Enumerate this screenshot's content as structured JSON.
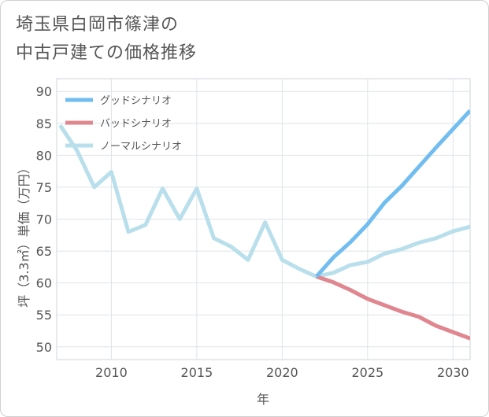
{
  "title": {
    "line1": "埼玉県白岡市篠津の",
    "line2": "中古戸建ての価格推移"
  },
  "chart_data": {
    "type": "line",
    "xlabel": "年",
    "ylabel": "坪（3.3㎡）単価（万円）",
    "xlim": [
      2006.8,
      2031
    ],
    "ylim": [
      48,
      92
    ],
    "xticks": [
      2010,
      2015,
      2020,
      2025,
      2030
    ],
    "yticks": [
      50,
      55,
      60,
      65,
      70,
      75,
      80,
      85,
      90
    ],
    "grid": true,
    "legend_position": "top-left",
    "series": [
      {
        "name": "グッドシナリオ",
        "color": "#72bdf0",
        "points": [
          [
            2022,
            61
          ],
          [
            2023,
            64
          ],
          [
            2024,
            66.4
          ],
          [
            2025,
            69.2
          ],
          [
            2026,
            72.6
          ],
          [
            2027,
            75.2
          ],
          [
            2028,
            78.2
          ],
          [
            2029,
            81.2
          ],
          [
            2030,
            84.1
          ],
          [
            2031,
            87
          ]
        ]
      },
      {
        "name": "バッドシナリオ",
        "color": "#e0868f",
        "points": [
          [
            2022,
            61
          ],
          [
            2023,
            60.1
          ],
          [
            2024,
            58.9
          ],
          [
            2025,
            57.5
          ],
          [
            2026,
            56.5
          ],
          [
            2027,
            55.5
          ],
          [
            2028,
            54.7
          ],
          [
            2029,
            53.3
          ],
          [
            2030,
            52.3
          ],
          [
            2031,
            51.3
          ]
        ]
      },
      {
        "name": "ノーマルシナリオ",
        "color": "#b8dfeb",
        "points": [
          [
            2007,
            84.7
          ],
          [
            2008,
            80.7
          ],
          [
            2009,
            75
          ],
          [
            2010,
            77.4
          ],
          [
            2011,
            68
          ],
          [
            2012,
            69.1
          ],
          [
            2013,
            74.8
          ],
          [
            2014,
            70
          ],
          [
            2015,
            74.8
          ],
          [
            2016,
            67
          ],
          [
            2017,
            65.7
          ],
          [
            2018,
            63.6
          ],
          [
            2019,
            69.5
          ],
          [
            2020,
            63.6
          ],
          [
            2021,
            62.2
          ],
          [
            2022,
            61
          ],
          [
            2023,
            61.6
          ],
          [
            2024,
            62.8
          ],
          [
            2025,
            63.3
          ],
          [
            2026,
            64.6
          ],
          [
            2027,
            65.3
          ],
          [
            2028,
            66.3
          ],
          [
            2029,
            67
          ],
          [
            2030,
            68.1
          ],
          [
            2031,
            68.8
          ]
        ]
      }
    ]
  }
}
